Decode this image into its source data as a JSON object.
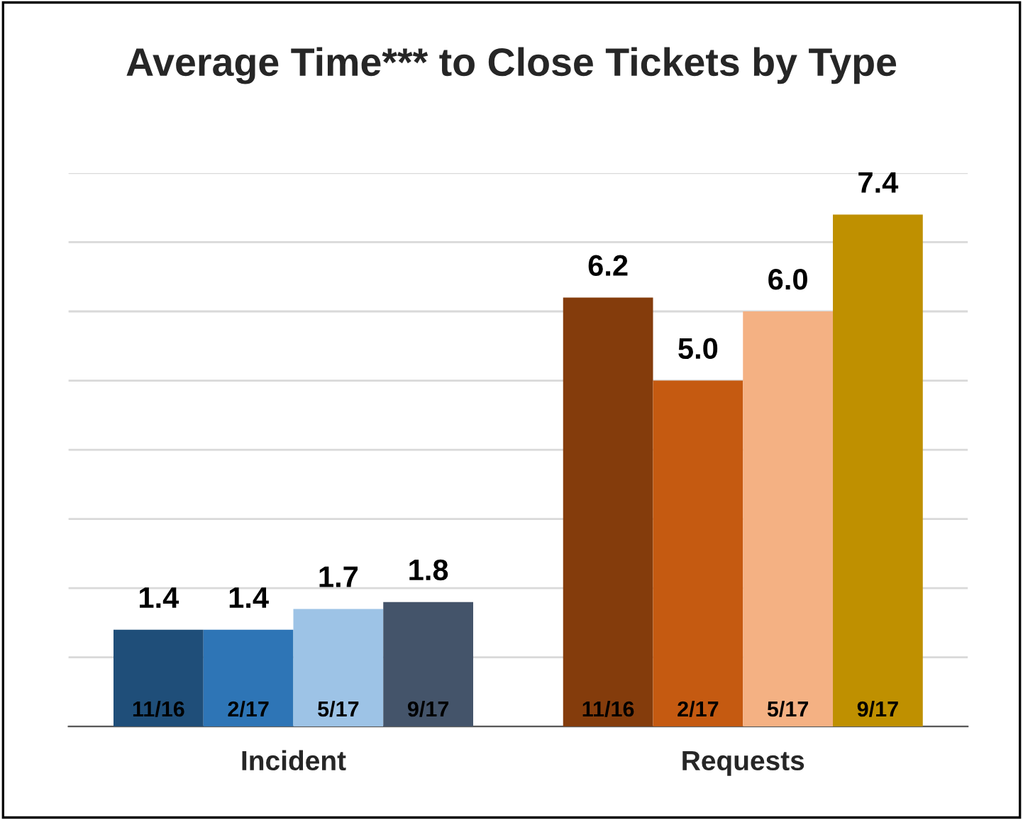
{
  "chart_data": {
    "type": "bar",
    "title": "Average Time*** to Close Tickets by Type",
    "categories": [
      "Incident",
      "Requests"
    ],
    "series": [
      {
        "name": "11/16",
        "colors": [
          "#1f4e79",
          "#843c0c"
        ],
        "values": [
          1.4,
          6.2
        ],
        "value_labels": [
          "1.4",
          "6.2"
        ]
      },
      {
        "name": "2/17",
        "colors": [
          "#2e75b6",
          "#c55a11"
        ],
        "values": [
          1.4,
          5.0
        ],
        "value_labels": [
          "1.4",
          "5.0"
        ]
      },
      {
        "name": "5/17",
        "colors": [
          "#9dc3e6",
          "#f4b183"
        ],
        "values": [
          1.7,
          6.0
        ],
        "value_labels": [
          "1.7",
          "6.0"
        ]
      },
      {
        "name": "9/17",
        "colors": [
          "#44546a",
          "#bf9000"
        ],
        "values": [
          1.8,
          7.4
        ],
        "value_labels": [
          "1.8",
          "7.4"
        ]
      }
    ],
    "ylim": [
      0,
      8
    ],
    "yticks": [
      {
        "value": 0,
        "label": null
      },
      {
        "value": 1,
        "label": null
      },
      {
        "value": 2,
        "label": null
      },
      {
        "value": 3,
        "label": null
      },
      {
        "value": 4,
        "label": null
      },
      {
        "value": 5,
        "label": null
      },
      {
        "value": 6,
        "label": null
      },
      {
        "value": 7,
        "label": null
      },
      {
        "value": 8,
        "label": null
      }
    ],
    "grid": "y",
    "legend": false
  }
}
